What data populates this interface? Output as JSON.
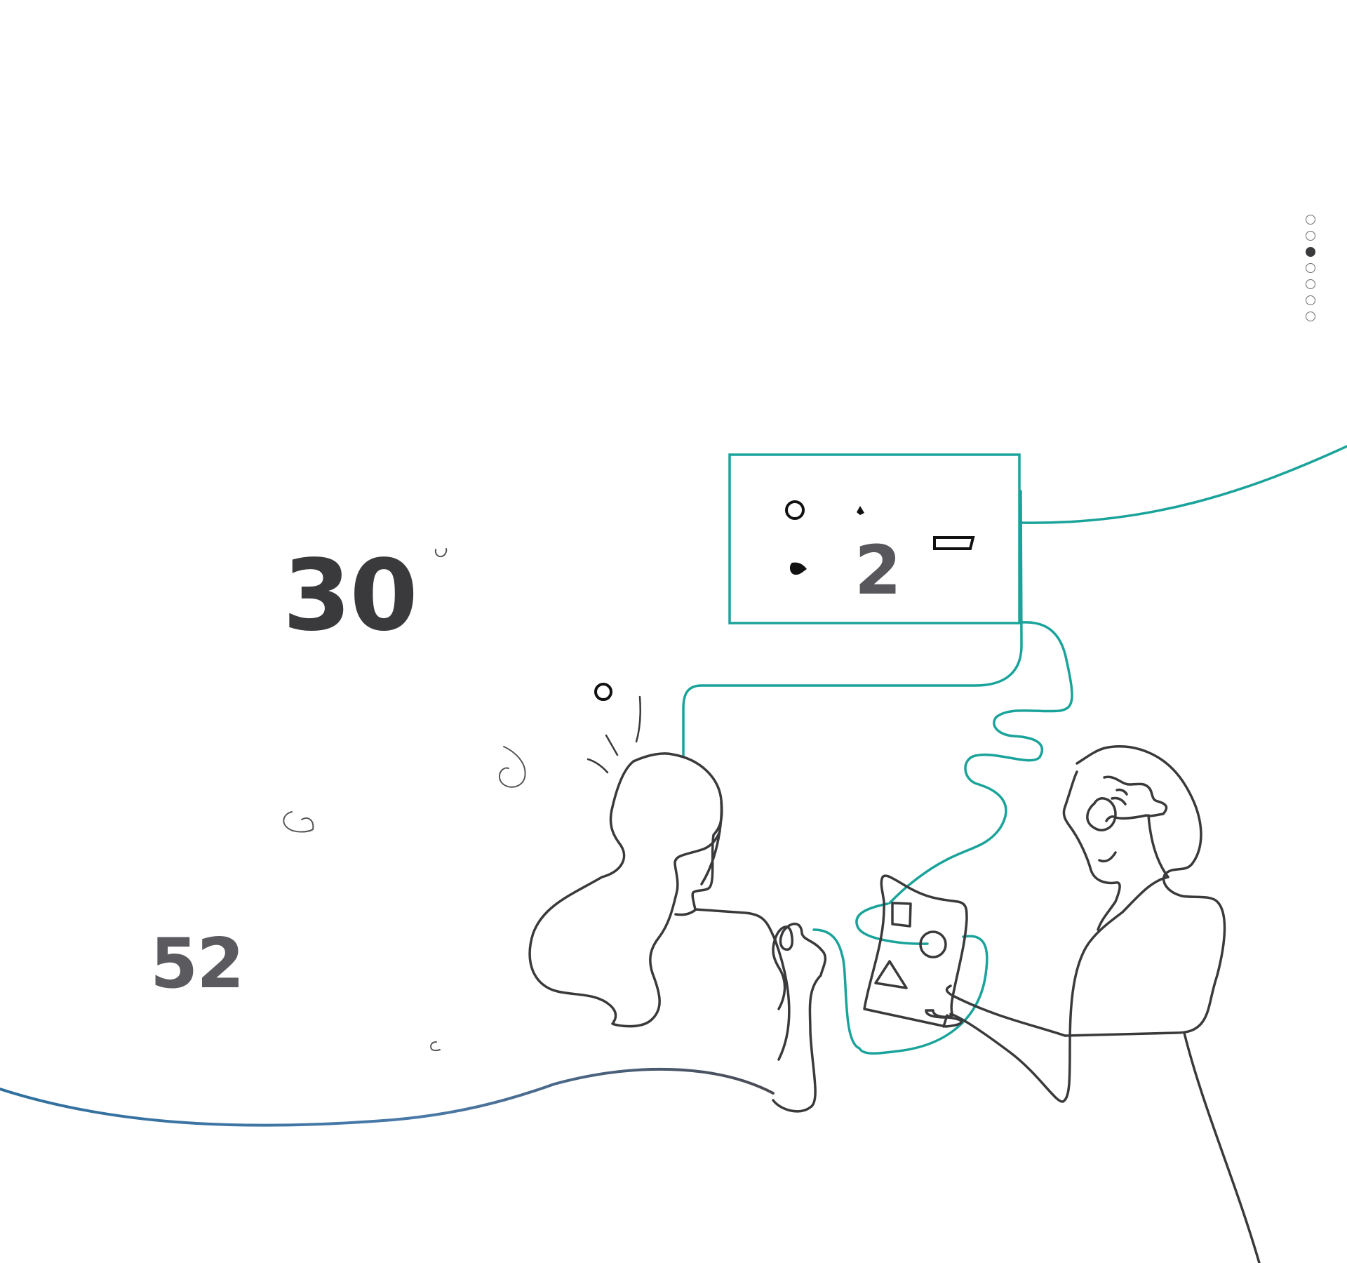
{
  "stats": {
    "primary_number": "30",
    "secondary_number": "52",
    "screen_number": "2"
  },
  "pager": {
    "total": 7,
    "active_index": 2,
    "dots": [
      {
        "name": "pager-dot-1"
      },
      {
        "name": "pager-dot-2"
      },
      {
        "name": "pager-dot-3"
      },
      {
        "name": "pager-dot-4"
      },
      {
        "name": "pager-dot-5"
      },
      {
        "name": "pager-dot-6"
      },
      {
        "name": "pager-dot-7"
      }
    ]
  },
  "colors": {
    "ink": "#3a3a3c",
    "teal": "#1aa39a",
    "blue_gradient_start": "#2f6f9e",
    "blue_gradient_end": "#5a5a66",
    "background": "#ffffff"
  },
  "icons": [
    "circle-icon",
    "drop-icon",
    "rectangle-icon",
    "square-icon",
    "triangle-icon",
    "swirl-icon"
  ]
}
